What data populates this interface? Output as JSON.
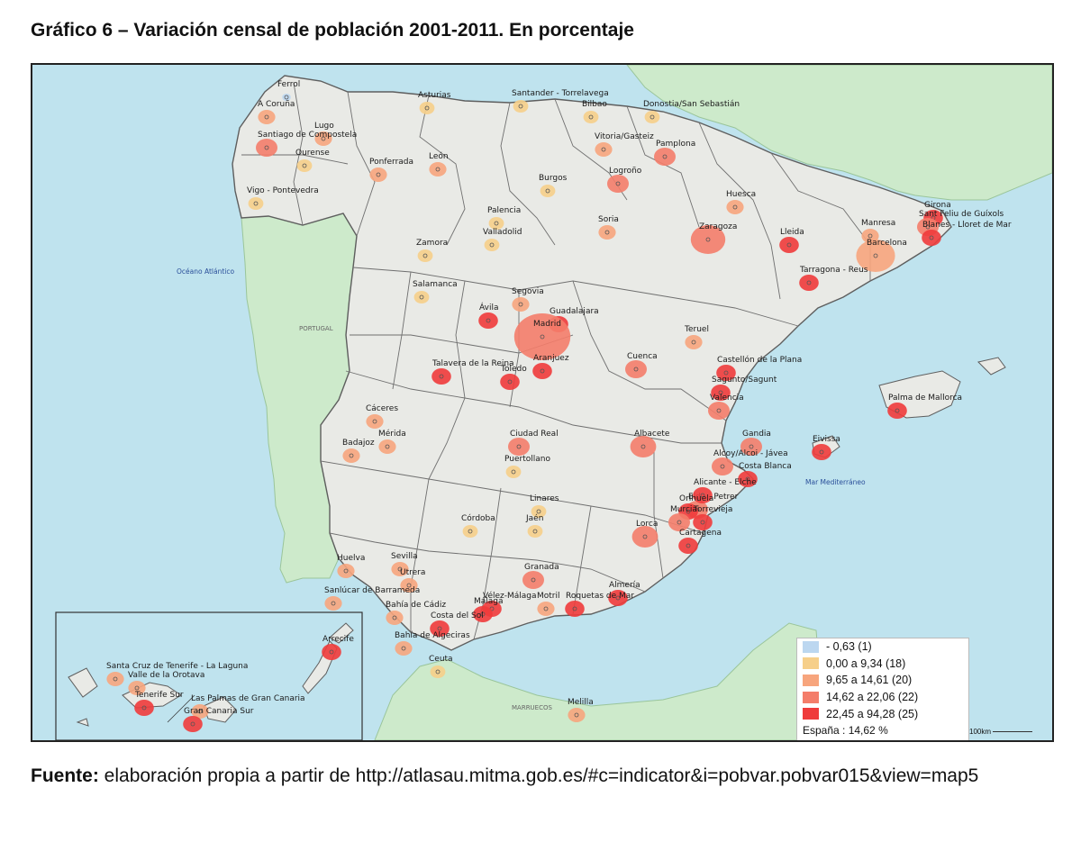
{
  "title": "Gráfico 6 – Variación censal de población 2001-2011. En porcentaje",
  "source": {
    "label": "Fuente:",
    "text": "elaboración propia a partir de http://atlasau.mitma.gob.es/#c=indicator&i=pobvar.pobvar015&view=map5"
  },
  "colors": {
    "sea": "#bfe3ee",
    "land_spain": "#e9eae6",
    "land_other": "#cdeacb",
    "borders": "#6f6f6f",
    "class1": "#bcd7f0",
    "class2": "#f6cf8a",
    "class3": "#f7a57d",
    "class4": "#f47d6a",
    "class5": "#ef3b3b"
  },
  "legend": {
    "items": [
      {
        "label": "- 0,63 (1)",
        "color": "#bcd7f0"
      },
      {
        "label": "0,00 a 9,34 (18)",
        "color": "#f6cf8a"
      },
      {
        "label": "9,65 a 14,61 (20)",
        "color": "#f7a57d"
      },
      {
        "label": "14,62 a 22,06 (22)",
        "color": "#f47d6a"
      },
      {
        "label": "22,45 a 94,28 (25)",
        "color": "#ef3b3b"
      }
    ],
    "summary": "España : 14,62 %"
  },
  "scale": "100km",
  "seas": {
    "atlantic": "Océano Atlántico",
    "mediterranean": "Mar Mediterráneo"
  },
  "countries": {
    "portugal": "PORTUGAL",
    "morocco": "MARRUECOS"
  },
  "places": [
    {
      "name": "Ferrol",
      "cls": 1
    },
    {
      "name": "A Coruña",
      "cls": 3
    },
    {
      "name": "Lugo",
      "cls": 3
    },
    {
      "name": "Santiago de Compostela",
      "cls": 4
    },
    {
      "name": "Ourense",
      "cls": 2
    },
    {
      "name": "Vigo - Pontevedra",
      "cls": 2
    },
    {
      "name": "Asturias",
      "cls": 2
    },
    {
      "name": "Santander - Torrelavega",
      "cls": 2
    },
    {
      "name": "Bilbao",
      "cls": 2
    },
    {
      "name": "Donostia/San Sebastián",
      "cls": 2
    },
    {
      "name": "Vitoria/Gasteiz",
      "cls": 3
    },
    {
      "name": "Pamplona",
      "cls": 4
    },
    {
      "name": "Logroño",
      "cls": 4
    },
    {
      "name": "Ponferrada",
      "cls": 3
    },
    {
      "name": "León",
      "cls": 3
    },
    {
      "name": "Burgos",
      "cls": 2
    },
    {
      "name": "Huesca",
      "cls": 3
    },
    {
      "name": "Girona",
      "cls": 5
    },
    {
      "name": "Sant Feliu de Guíxols",
      "cls": 4
    },
    {
      "name": "Manresa",
      "cls": 3
    },
    {
      "name": "Blanes - Lloret de Mar",
      "cls": 5
    },
    {
      "name": "Barcelona",
      "cls": 3
    },
    {
      "name": "Palencia",
      "cls": 2
    },
    {
      "name": "Soria",
      "cls": 3
    },
    {
      "name": "Zaragoza",
      "cls": 4
    },
    {
      "name": "Lleida",
      "cls": 5
    },
    {
      "name": "Valladolid",
      "cls": 2
    },
    {
      "name": "Zamora",
      "cls": 2
    },
    {
      "name": "Tarragona - Reus",
      "cls": 5
    },
    {
      "name": "Salamanca",
      "cls": 2
    },
    {
      "name": "Segovia",
      "cls": 3
    },
    {
      "name": "Ávila",
      "cls": 5
    },
    {
      "name": "Guadalajara",
      "cls": 5
    },
    {
      "name": "Madrid",
      "cls": 4
    },
    {
      "name": "Teruel",
      "cls": 3
    },
    {
      "name": "Aranjuez",
      "cls": 5
    },
    {
      "name": "Talavera de la Reina",
      "cls": 5
    },
    {
      "name": "Toledo",
      "cls": 5
    },
    {
      "name": "Cuenca",
      "cls": 4
    },
    {
      "name": "Castellón de la Plana",
      "cls": 5
    },
    {
      "name": "Sagunto/Sagunt",
      "cls": 5
    },
    {
      "name": "Valencia",
      "cls": 4
    },
    {
      "name": "Palma de Mallorca",
      "cls": 5
    },
    {
      "name": "Cáceres",
      "cls": 3
    },
    {
      "name": "Mérida",
      "cls": 3
    },
    {
      "name": "Badajoz",
      "cls": 3
    },
    {
      "name": "Ciudad Real",
      "cls": 4
    },
    {
      "name": "Albacete",
      "cls": 4
    },
    {
      "name": "Gandia",
      "cls": 4
    },
    {
      "name": "Eivissa",
      "cls": 5
    },
    {
      "name": "Alcoy/Alcoi - Jávea",
      "cls": 4
    },
    {
      "name": "Puertollano",
      "cls": 2
    },
    {
      "name": "Costa Blanca",
      "cls": 5
    },
    {
      "name": "Elda - Petrer",
      "cls": 4
    },
    {
      "name": "Alicante - Elche",
      "cls": 5
    },
    {
      "name": "Linares",
      "cls": 2
    },
    {
      "name": "Córdoba",
      "cls": 2
    },
    {
      "name": "Jaén",
      "cls": 2
    },
    {
      "name": "Orihuela",
      "cls": 5
    },
    {
      "name": "Murcia",
      "cls": 4
    },
    {
      "name": "Torrevieja",
      "cls": 5
    },
    {
      "name": "Lorca",
      "cls": 4
    },
    {
      "name": "Cartagena",
      "cls": 5
    },
    {
      "name": "Huelva",
      "cls": 3
    },
    {
      "name": "Sevilla",
      "cls": 3
    },
    {
      "name": "Utrera",
      "cls": 3
    },
    {
      "name": "Granada",
      "cls": 4
    },
    {
      "name": "Sanlúcar de Barrameda",
      "cls": 3
    },
    {
      "name": "Almería",
      "cls": 5
    },
    {
      "name": "Bahía de Cádiz",
      "cls": 3
    },
    {
      "name": "Vélez-Málaga",
      "cls": 5
    },
    {
      "name": "Motril",
      "cls": 3
    },
    {
      "name": "Roquetas de Mar",
      "cls": 5
    },
    {
      "name": "Málaga",
      "cls": 5
    },
    {
      "name": "Costa del Sol",
      "cls": 5
    },
    {
      "name": "Bahía de Algeciras",
      "cls": 3
    },
    {
      "name": "Ceuta",
      "cls": 2
    },
    {
      "name": "Melilla",
      "cls": 3
    },
    {
      "name": "Arrecife",
      "cls": 5
    },
    {
      "name": "Santa Cruz de Tenerife - La Laguna",
      "cls": 3
    },
    {
      "name": "Valle de la Orotava",
      "cls": 3
    },
    {
      "name": "Tenerife Sur",
      "cls": 5
    },
    {
      "name": "Las Palmas de Gran Canaria",
      "cls": 3
    },
    {
      "name": "Gran Canaria Sur",
      "cls": 5
    }
  ]
}
